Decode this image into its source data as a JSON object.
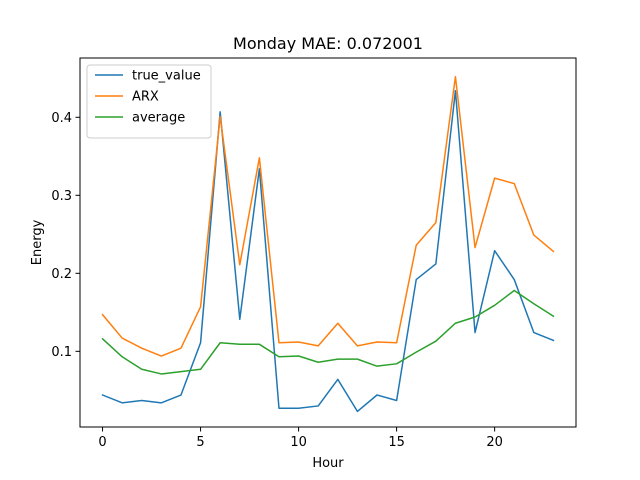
{
  "chart_data": {
    "type": "line",
    "title": "Monday MAE: 0.072001",
    "xlabel": "Hour",
    "ylabel": "Energy",
    "xlim": [
      -1.15,
      24.15
    ],
    "ylim": [
      0.003,
      0.476
    ],
    "xticks": [
      0,
      5,
      10,
      15,
      20
    ],
    "yticks": [
      0.1,
      0.2,
      0.3,
      0.4
    ],
    "xtick_labels": [
      "0",
      "5",
      "10",
      "15",
      "20"
    ],
    "ytick_labels": [
      "0.1",
      "0.2",
      "0.3",
      "0.4"
    ],
    "grid": false,
    "legend_position": "upper left",
    "x": [
      0,
      1,
      2,
      3,
      4,
      5,
      6,
      7,
      8,
      9,
      10,
      11,
      12,
      13,
      14,
      15,
      16,
      17,
      18,
      19,
      20,
      21,
      22,
      23
    ],
    "series": [
      {
        "name": "true_value",
        "color": "#1f77b4",
        "values": [
          0.044,
          0.034,
          0.037,
          0.034,
          0.044,
          0.111,
          0.407,
          0.141,
          0.334,
          0.027,
          0.027,
          0.03,
          0.064,
          0.023,
          0.044,
          0.037,
          0.192,
          0.212,
          0.434,
          0.124,
          0.229,
          0.192,
          0.124,
          0.114
        ]
      },
      {
        "name": "ARX",
        "color": "#ff7f0e",
        "values": [
          0.147,
          0.117,
          0.104,
          0.094,
          0.104,
          0.157,
          0.401,
          0.211,
          0.348,
          0.111,
          0.112,
          0.107,
          0.136,
          0.107,
          0.112,
          0.111,
          0.236,
          0.265,
          0.452,
          0.233,
          0.322,
          0.315,
          0.249,
          0.228
        ]
      },
      {
        "name": "average",
        "color": "#2ca02c",
        "values": [
          0.116,
          0.093,
          0.077,
          0.071,
          0.074,
          0.077,
          0.111,
          0.109,
          0.109,
          0.093,
          0.094,
          0.086,
          0.09,
          0.09,
          0.081,
          0.084,
          0.099,
          0.113,
          0.136,
          0.144,
          0.159,
          0.178,
          0.161,
          0.145
        ]
      }
    ]
  }
}
